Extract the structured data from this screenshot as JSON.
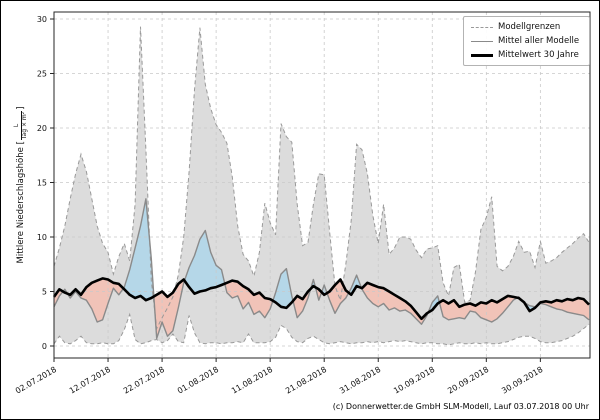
{
  "colors": {
    "envelope_fill": "#dcdcdc",
    "envelope_edge": "#999999",
    "grid": "#c9c9c9",
    "model_mean_line": "#8a8a8a",
    "mean30_line": "#000000",
    "above_fill": "#b5d7e8",
    "below_fill": "#f1c3b8",
    "spine": "#262626"
  },
  "y_axis": {
    "label_prefix": "Mittlere Niederschlagshöhe [",
    "unit_numerator": "L",
    "unit_denominator": "Tag × m²",
    "label_suffix": "]"
  },
  "legend": {
    "items": [
      {
        "label": "Modellgrenzen",
        "style": "dashed"
      },
      {
        "label": "Mittel aller Modelle",
        "style": "gray"
      },
      {
        "label": "Mittelwert 30 Jahre",
        "style": "black"
      }
    ]
  },
  "footer": {
    "credit": "(c) Donnerwetter.de GmbH SLM-Modell, Lauf 03.07.2018 00 Uhr"
  },
  "chart_data": {
    "type": "area",
    "title": "",
    "xlabel": "",
    "ylabel": "Mittlere Niederschlagshöhe [L/(Tag × m²)]",
    "grid": true,
    "legend_position": "upper right",
    "ylim": [
      -1.1,
      30.7
    ],
    "y_ticks": [
      0,
      5,
      10,
      15,
      20,
      25,
      30
    ],
    "x_tick_positions": [
      0,
      10,
      20,
      30,
      40,
      50,
      60,
      70,
      80,
      90
    ],
    "x_tick_labels": [
      "02.07.2018",
      "12.07.2018",
      "22.07.2018",
      "01.08.2018",
      "11.08.2018",
      "21.08.2018",
      "31.08.2018",
      "10.09.2018",
      "20.09.2018",
      "30.09.2018"
    ],
    "x_unit": "days since 02.07.2018",
    "series": [
      {
        "name": "Modellgrenzen (Maximum)",
        "values": [
          7.3,
          9.0,
          11.0,
          13.5,
          15.8,
          17.6,
          16.0,
          13.5,
          11.0,
          9.4,
          8.6,
          6.6,
          8.2,
          9.4,
          7.8,
          13.0,
          29.3,
          18.0,
          6.0,
          1.6,
          2.6,
          3.5,
          4.5,
          6.5,
          10.0,
          16.0,
          23.5,
          29.2,
          24.0,
          21.8,
          20.3,
          19.6,
          18.6,
          15.5,
          11.0,
          8.4,
          7.8,
          6.4,
          8.6,
          13.1,
          11.3,
          10.2,
          20.4,
          19.2,
          18.7,
          13.0,
          9.2,
          9.5,
          13.0,
          15.8,
          15.7,
          10.5,
          5.5,
          4.2,
          7.5,
          11.5,
          18.5,
          18.0,
          15.8,
          12.0,
          9.4,
          13.0,
          8.4,
          9.0,
          10.0,
          10.0,
          9.8,
          8.8,
          8.1,
          8.9,
          9.0,
          9.2,
          5.8,
          4.6,
          7.2,
          7.5,
          4.0,
          4.2,
          6.8,
          10.7,
          11.8,
          13.7,
          7.3,
          6.9,
          7.3,
          8.2,
          9.6,
          8.6,
          8.7,
          7.2,
          9.6,
          7.6,
          7.8,
          8.1,
          8.6,
          9.0,
          9.4,
          9.9,
          10.3,
          9.5
        ]
      },
      {
        "name": "Modellgrenzen (Minimum)",
        "values": [
          0.2,
          0.9,
          0.3,
          0.2,
          0.5,
          0.9,
          0.3,
          0.2,
          0.2,
          0.3,
          0.2,
          0.2,
          0.5,
          1.5,
          2.9,
          0.6,
          0.2,
          0.3,
          0.5,
          0.6,
          0.3,
          0.5,
          1.1,
          0.4,
          0.3,
          2.8,
          1.2,
          0.3,
          0.2,
          0.3,
          0.3,
          0.2,
          0.3,
          0.3,
          0.4,
          0.3,
          1.1,
          0.3,
          0.3,
          0.3,
          0.4,
          0.8,
          1.9,
          1.6,
          0.8,
          0.4,
          0.3,
          0.7,
          0.9,
          0.6,
          0.3,
          0.2,
          0.3,
          0.4,
          0.3,
          0.2,
          0.3,
          0.3,
          0.4,
          0.3,
          0.4,
          0.3,
          0.4,
          0.5,
          0.4,
          0.5,
          0.4,
          0.3,
          0.2,
          0.3,
          0.3,
          0.2,
          0.2,
          0.1,
          0.2,
          0.3,
          0.2,
          0.2,
          0.3,
          0.2,
          0.3,
          0.2,
          0.2,
          0.3,
          0.4,
          0.6,
          0.8,
          0.9,
          0.9,
          0.7,
          0.4,
          0.3,
          0.3,
          0.4,
          0.5,
          0.7,
          0.9,
          1.2,
          1.6,
          2.0
        ]
      },
      {
        "name": "Mittel aller Modelle",
        "values": [
          3.6,
          4.6,
          5.2,
          4.4,
          5.0,
          4.4,
          4.2,
          3.4,
          2.2,
          2.4,
          3.9,
          5.3,
          4.7,
          5.4,
          7.0,
          9.0,
          11.0,
          13.5,
          8.0,
          0.7,
          2.2,
          0.9,
          1.4,
          3.5,
          5.8,
          7.2,
          8.3,
          9.8,
          10.6,
          8.6,
          7.4,
          7.0,
          4.9,
          4.4,
          4.6,
          3.4,
          4.0,
          2.9,
          3.2,
          2.6,
          3.4,
          4.9,
          6.6,
          7.1,
          4.6,
          2.6,
          3.2,
          4.4,
          6.1,
          4.2,
          5.6,
          4.2,
          3.0,
          3.9,
          4.4,
          5.3,
          6.5,
          5.2,
          4.4,
          3.9,
          3.6,
          3.9,
          3.3,
          3.5,
          3.2,
          3.3,
          3.0,
          2.5,
          2.0,
          2.8,
          4.0,
          4.6,
          2.7,
          2.4,
          2.5,
          2.6,
          2.5,
          3.2,
          3.1,
          2.6,
          2.4,
          2.2,
          2.5,
          3.0,
          3.6,
          4.2,
          4.5,
          4.0,
          3.7,
          3.6,
          3.9,
          3.8,
          3.6,
          3.4,
          3.3,
          3.1,
          3.0,
          2.9,
          2.8,
          2.4
        ]
      },
      {
        "name": "Mittelwert 30 Jahre",
        "values": [
          4.5,
          5.2,
          4.9,
          4.7,
          5.2,
          4.7,
          5.4,
          5.8,
          6.0,
          6.2,
          6.1,
          5.8,
          5.7,
          5.2,
          4.7,
          4.4,
          4.6,
          4.2,
          4.4,
          4.7,
          5.0,
          4.5,
          4.9,
          5.7,
          6.1,
          5.4,
          4.8,
          5.0,
          5.1,
          5.3,
          5.4,
          5.6,
          5.8,
          6.0,
          5.9,
          5.5,
          5.2,
          4.7,
          4.9,
          4.4,
          4.3,
          4.0,
          3.6,
          3.5,
          4.0,
          4.6,
          4.3,
          5.0,
          5.5,
          5.2,
          4.7,
          5.0,
          5.6,
          6.1,
          5.1,
          4.7,
          5.5,
          5.3,
          5.8,
          5.6,
          5.4,
          5.3,
          5.0,
          4.7,
          4.4,
          4.1,
          3.7,
          3.1,
          2.5,
          3.0,
          3.3,
          3.9,
          4.2,
          3.9,
          4.2,
          3.6,
          3.8,
          3.9,
          3.7,
          4.0,
          3.9,
          4.2,
          4.0,
          4.3,
          4.6,
          4.5,
          4.4,
          4.0,
          3.2,
          3.5,
          4.0,
          4.1,
          4.0,
          4.2,
          4.1,
          4.3,
          4.2,
          4.4,
          4.3,
          3.8
        ]
      }
    ]
  }
}
